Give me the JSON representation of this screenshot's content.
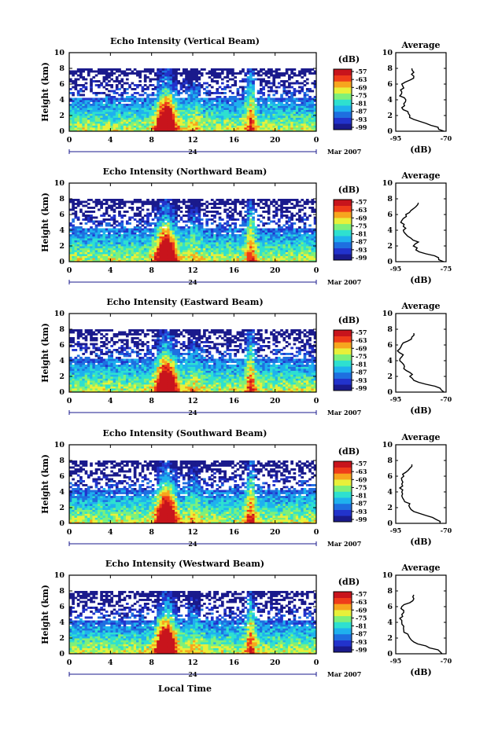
{
  "figure": {
    "xlabel": "Local Time",
    "date_label": "24",
    "month_label": "Mar 2007",
    "ylabel": "Height (km)",
    "x_ticks": [
      "0",
      "4",
      "8",
      "12",
      "16",
      "20",
      "0"
    ],
    "y_ticks": [
      "0",
      "2",
      "4",
      "6",
      "8",
      "10"
    ],
    "colorbar_unit": "(dB)",
    "colorbar_ticks": [
      "-57",
      "-63",
      "-69",
      "-75",
      "-81",
      "-87",
      "-93",
      "-99"
    ],
    "profile_title": "Average",
    "profile_unit": "(dB)",
    "profile_y_ticks": [
      "0",
      "2",
      "4",
      "6",
      "8",
      "10"
    ],
    "colors": {
      "colorscale": [
        "#1a1a8c",
        "#2233cc",
        "#1e6fe0",
        "#1fb1ee",
        "#2ee0d0",
        "#7ef07a",
        "#e8f03a",
        "#f7a51e",
        "#ef3c1a",
        "#c8141c"
      ]
    }
  },
  "chart_data": [
    {
      "type": "heatmap",
      "title": "Echo Intensity (Vertical Beam)",
      "xlabel": "Local Time",
      "ylabel": "Height (km)",
      "xlim": [
        0,
        24
      ],
      "ylim": [
        0,
        10
      ],
      "zlim": [
        -99,
        -57
      ],
      "profile": {
        "title": "Average",
        "xlabel": "(dB)",
        "xticks": [
          "-95",
          "-70"
        ],
        "xlim": [
          -95,
          -70
        ],
        "height": [
          0,
          0.5,
          1,
          1.5,
          2,
          2.5,
          3,
          3.5,
          4,
          4.5,
          5,
          5.5,
          6,
          6.5,
          7,
          7.5,
          8
        ],
        "value": [
          -71,
          -74,
          -80,
          -86,
          -88,
          -89,
          -92,
          -91,
          -90,
          -93,
          -92,
          -91,
          -92,
          -88,
          -86,
          -86,
          -87
        ]
      }
    },
    {
      "type": "heatmap",
      "title": "Echo Intensity (Northward Beam)",
      "xlabel": "Local Time",
      "ylabel": "Height (km)",
      "xlim": [
        0,
        24
      ],
      "ylim": [
        0,
        10
      ],
      "zlim": [
        -99,
        -57
      ],
      "profile": {
        "title": "Average",
        "xlabel": "(dB)",
        "xticks": [
          "-95",
          "-75"
        ],
        "xlim": [
          -95,
          -75
        ],
        "height": [
          0,
          0.5,
          1,
          1.5,
          2,
          2.5,
          3,
          3.5,
          4,
          4.5,
          5,
          5.5,
          6,
          6.5,
          7,
          7.5
        ],
        "value": [
          -76,
          -78,
          -83,
          -87,
          -88,
          -86,
          -89,
          -91,
          -92,
          -92,
          -93,
          -92,
          -91,
          -89,
          -87,
          -86
        ]
      }
    },
    {
      "type": "heatmap",
      "title": "Echo Intensity (Eastward Beam)",
      "xlabel": "Local Time",
      "ylabel": "Height (km)",
      "xlim": [
        0,
        24
      ],
      "ylim": [
        0,
        10
      ],
      "zlim": [
        -99,
        -57
      ],
      "profile": {
        "title": "Average",
        "xlabel": "(dB)",
        "xticks": [
          "-95",
          "-70"
        ],
        "xlim": [
          -95,
          -70
        ],
        "height": [
          0,
          0.5,
          1,
          1.5,
          2,
          2.5,
          3,
          3.5,
          4,
          4.5,
          5,
          5.5,
          6,
          6.5,
          7,
          7.5
        ],
        "value": [
          -71,
          -73,
          -80,
          -86,
          -88,
          -88,
          -91,
          -91,
          -93,
          -92,
          -93,
          -93,
          -92,
          -89,
          -87,
          -86
        ]
      }
    },
    {
      "type": "heatmap",
      "title": "Echo Intensity (Southward Beam)",
      "xlabel": "Local Time",
      "ylabel": "Height (km)",
      "xlim": [
        0,
        24
      ],
      "ylim": [
        0,
        10
      ],
      "zlim": [
        -99,
        -57
      ],
      "profile": {
        "title": "Average",
        "xlabel": "(dB)",
        "xticks": [
          "-95",
          "-70"
        ],
        "xlim": [
          -95,
          -70
        ],
        "height": [
          0,
          0.5,
          1,
          1.5,
          2,
          2.5,
          3,
          3.5,
          4,
          4.5,
          5,
          5.5,
          6,
          6.5,
          7,
          7.5
        ],
        "value": [
          -73,
          -75,
          -80,
          -86,
          -88,
          -88,
          -91,
          -92,
          -92,
          -93,
          -92,
          -92,
          -91,
          -90,
          -88,
          -87
        ]
      }
    },
    {
      "type": "heatmap",
      "title": "Echo Intensity (Westward Beam)",
      "xlabel": "Local Time",
      "ylabel": "Height (km)",
      "xlim": [
        0,
        24
      ],
      "ylim": [
        0,
        10
      ],
      "zlim": [
        -99,
        -57
      ],
      "profile": {
        "title": "Average",
        "xlabel": "(dB)",
        "xticks": [
          "-95",
          "-70"
        ],
        "xlim": [
          -95,
          -70
        ],
        "height": [
          0,
          0.5,
          1,
          1.5,
          2,
          2.5,
          3,
          3.5,
          4,
          4.5,
          5,
          5.5,
          6,
          6.5,
          7,
          7.5
        ],
        "value": [
          -72,
          -74,
          -80,
          -86,
          -88,
          -89,
          -91,
          -91,
          -92,
          -93,
          -92,
          -91,
          -92,
          -88,
          -86,
          -86
        ]
      }
    }
  ]
}
